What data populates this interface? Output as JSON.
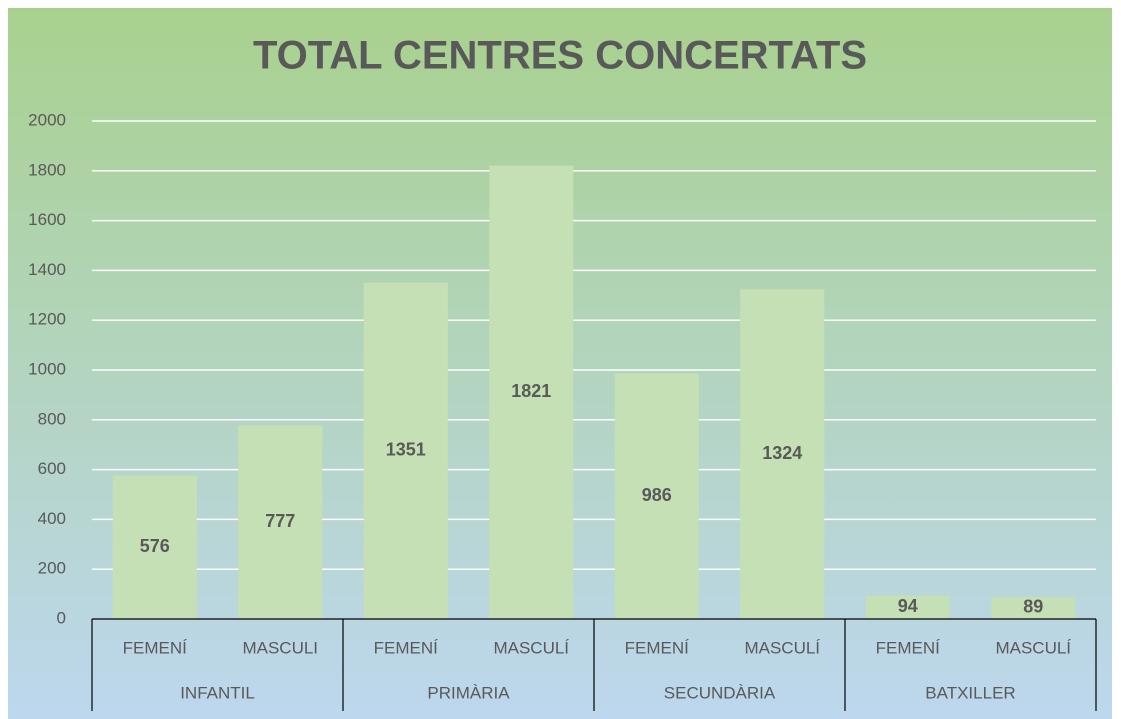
{
  "chart_data": {
    "type": "bar",
    "title": "TOTAL CENTRES CONCERTATS",
    "categories": [
      "FEMENÍ",
      "MASCULI",
      "FEMENÍ",
      "MASCULÍ",
      "FEMENÍ",
      "MASCULÍ",
      "FEMENÍ",
      "MASCULÍ"
    ],
    "groups": [
      "INFANTIL",
      "PRIMÀRIA",
      "SECUNDÀRIA",
      "BATXILLER"
    ],
    "values": [
      576,
      777,
      1351,
      1821,
      986,
      1324,
      94,
      89
    ],
    "color": "#c5e0b4",
    "ylim": [
      0,
      2000
    ],
    "yticks": [
      0,
      200,
      400,
      600,
      800,
      1000,
      1200,
      1400,
      1600,
      1800,
      2000
    ],
    "grid": true
  }
}
